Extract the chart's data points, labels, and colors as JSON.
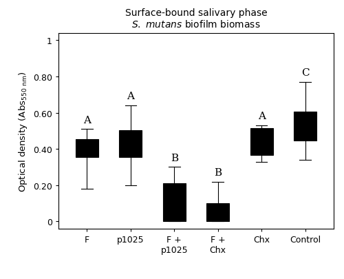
{
  "title_line1": "Surface-bound salivary phase",
  "title_line2": "S. mutans biofilm biomass",
  "xlabel_labels": [
    "F",
    "p1025",
    "F +\np1025",
    "F +\nChx",
    "Chx",
    "Control"
  ],
  "stat_labels": [
    "A",
    "A",
    "B",
    "B",
    "A",
    "C"
  ],
  "ylim": [
    -0.04,
    1.04
  ],
  "yticks": [
    0,
    0.2,
    0.4,
    0.6,
    0.8,
    1
  ],
  "ytick_labels": [
    "0",
    "0.20",
    "0.40",
    "0.60",
    "0.80",
    "1"
  ],
  "box_facecolor": "#AAAAAA",
  "box_edgecolor": "#000000",
  "median_color": "#000000",
  "whisker_color": "#000000",
  "boxes": [
    {
      "min": 0.18,
      "q1": 0.355,
      "median": 0.41,
      "q3": 0.455,
      "max": 0.51
    },
    {
      "min": 0.2,
      "q1": 0.355,
      "median": 0.435,
      "q3": 0.505,
      "max": 0.64
    },
    {
      "min": 0.0,
      "q1": 0.0,
      "median": 0.005,
      "q3": 0.21,
      "max": 0.3
    },
    {
      "min": 0.0,
      "q1": 0.0,
      "median": 0.005,
      "q3": 0.1,
      "max": 0.22
    },
    {
      "min": 0.33,
      "q1": 0.365,
      "median": 0.455,
      "q3": 0.515,
      "max": 0.53
    },
    {
      "min": 0.34,
      "q1": 0.445,
      "median": 0.525,
      "q3": 0.605,
      "max": 0.77
    }
  ],
  "stat_offsets": [
    0.025,
    0.025,
    0.025,
    0.025,
    0.025,
    0.025
  ],
  "figsize": [
    5.0,
    4.06
  ],
  "dpi": 100
}
